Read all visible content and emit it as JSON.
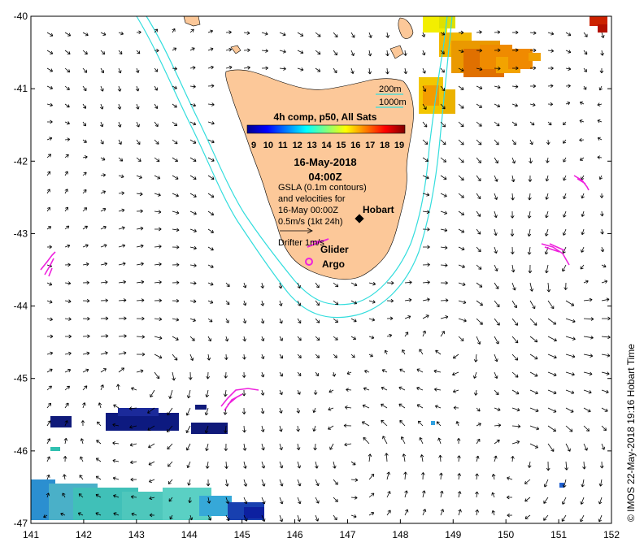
{
  "map": {
    "lon_range": [
      141,
      152
    ],
    "lat_range": [
      -47,
      -40
    ],
    "x_ticks": [
      "141",
      "142",
      "143",
      "144",
      "145",
      "146",
      "147",
      "148",
      "149",
      "150",
      "151",
      "152"
    ],
    "y_ticks": [
      "-40",
      "-41",
      "-42",
      "-43",
      "-44",
      "-45",
      "-46",
      "-47"
    ],
    "land_color": "#fcc899",
    "contour_color": "#33dddd"
  },
  "legend": {
    "contour_200": "200m",
    "contour_1000": "1000m",
    "product": "4h comp, p50, All Sats",
    "colorbar_ticks": [
      "9",
      "10",
      "11",
      "12",
      "13",
      "14",
      "15",
      "16",
      "17",
      "18",
      "19"
    ],
    "date": "16-May-2018",
    "time": "04:00Z",
    "gsla_line1": "GSLA (0.1m contours)",
    "gsla_line2": "and velocities for",
    "gsla_line3": "16-May 00:00Z",
    "scale_label": "0.5m/s (1kt 24h)",
    "drifter_label": "Drifter 1m/s"
  },
  "places": {
    "hobart": "Hobart",
    "glider": "Glider",
    "argo": "Argo"
  },
  "colors": {
    "drifter": "#ee22dd",
    "argo": "#ee22dd",
    "hobart_marker": "#000000"
  },
  "copyright": "© IMOS 22-May-2018 19:16 Hobart Time"
}
